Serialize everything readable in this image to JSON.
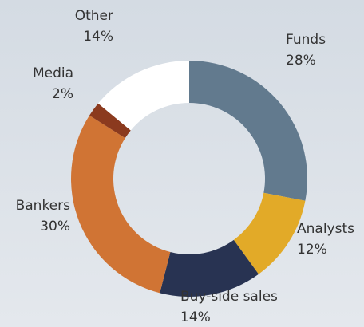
{
  "chart_data": {
    "type": "donut",
    "categories": [
      "Funds",
      "Analysts",
      "Buy-side sales",
      "Bankers",
      "Media",
      "Other"
    ],
    "values": [
      28,
      12,
      14,
      30,
      2,
      14
    ],
    "value_labels": [
      "28%",
      "12%",
      "14%",
      "30%",
      "2%",
      "14%"
    ],
    "colors": [
      "#627a8e",
      "#e2aa28",
      "#283352",
      "#d07434",
      "#8b3a1e",
      "#ffffff"
    ]
  }
}
